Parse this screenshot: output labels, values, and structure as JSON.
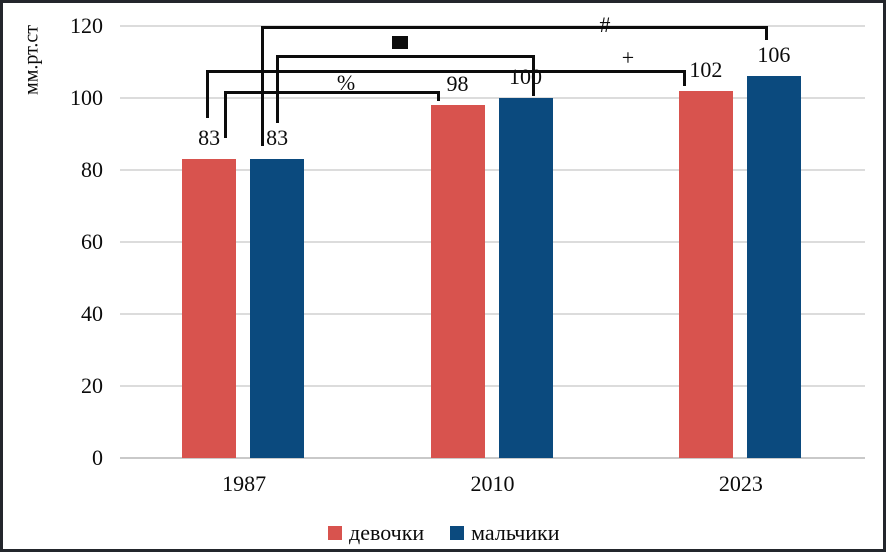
{
  "chart_data": {
    "type": "bar",
    "title": "",
    "ylabel": "мм.рт.ст",
    "xlabel": "",
    "categories": [
      "1987",
      "2010",
      "2023"
    ],
    "series": [
      {
        "name": "девочки",
        "color": "#d8534e",
        "values": [
          83,
          98,
          102
        ]
      },
      {
        "name": "мальчики",
        "color": "#0b4a7e",
        "values": [
          83,
          100,
          106
        ]
      }
    ],
    "ylim": [
      0,
      120
    ],
    "yticks": [
      0,
      20,
      40,
      60,
      80,
      100,
      120
    ],
    "grid": true,
    "legend_position": "bottom",
    "annotations": [
      {
        "symbol": "%",
        "series": "девочки",
        "from_category": "1987",
        "to_category": "2010"
      },
      {
        "symbol": "+",
        "series": "девочки",
        "from_category": "1987",
        "to_category": "2023"
      },
      {
        "symbol": "■",
        "series": "мальчики",
        "from_category": "1987",
        "to_category": "2010"
      },
      {
        "symbol": "#",
        "series": "мальчики",
        "from_category": "1987",
        "to_category": "2023"
      }
    ]
  }
}
